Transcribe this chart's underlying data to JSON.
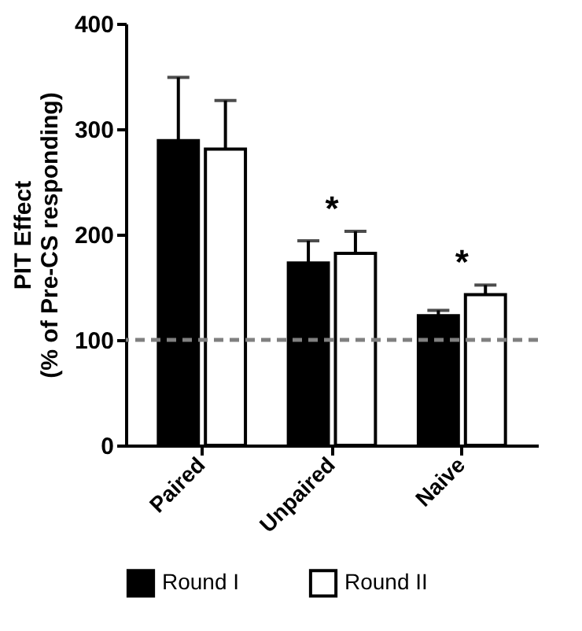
{
  "chart_data": {
    "type": "bar",
    "ylabel": "PIT Effect (% of Pre-CS responding)",
    "categories": [
      "Paired",
      "Unpaired",
      "Naive"
    ],
    "series": [
      {
        "name": "Round I",
        "color": "#000000",
        "values": [
          289,
          173,
          123
        ],
        "errors": [
          [
            289,
            349
          ],
          [
            173,
            194
          ],
          [
            123,
            128
          ]
        ]
      },
      {
        "name": "Round II",
        "color": "#ffffff",
        "values": [
          281,
          182,
          143
        ],
        "errors": [
          [
            281,
            327
          ],
          [
            182,
            203
          ],
          [
            143,
            152
          ]
        ]
      }
    ],
    "ylim": [
      0,
      400
    ],
    "yticks": [
      0,
      100,
      200,
      300,
      400
    ],
    "grid": false,
    "legend": "bottom",
    "ref_lines": [
      {
        "axis": "y",
        "value": 100,
        "color": "#808080",
        "line_style": "dashed"
      }
    ],
    "annotations": [
      "*",
      "*"
    ]
  }
}
